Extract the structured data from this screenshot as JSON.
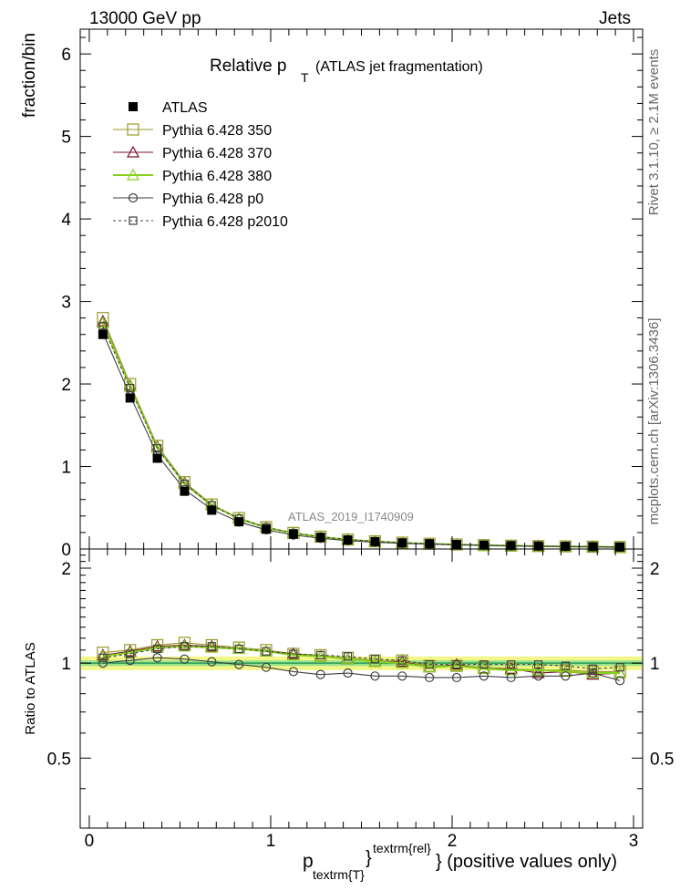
{
  "header": {
    "left": "13000 GeV pp",
    "right": "Jets"
  },
  "side_labels": {
    "rivet": "Rivet 3.1.10, ≥ 2.1M events",
    "mcplots": "mcplots.cern.ch [arXiv:1306.3436]"
  },
  "chart_data": {
    "type": "line",
    "title_main": "Relative p",
    "title_sub": "T",
    "title_rest": "(ATLAS jet fragmentation)",
    "analysis_id": "ATLAS_2019_I1740909",
    "ylabel": "fraction/bin",
    "ratio_ylabel": "Ratio to ATLAS",
    "xlabel_main": "p",
    "xlabel_sub": "textrm{T}",
    "xlabel_sup": "textrm{rel}",
    "xlabel_rest": "} (positive values only)",
    "xlim": [
      -0.05,
      3.05
    ],
    "ylim": [
      0,
      6.3
    ],
    "ratio_ylim": [
      0.3,
      2.3
    ],
    "x_ticks": [
      "0",
      "1",
      "2",
      "3"
    ],
    "y_ticks": [
      "0",
      "1",
      "2",
      "3",
      "4",
      "5",
      "6"
    ],
    "ratio_ticks": [
      "0.5",
      "1",
      "2"
    ],
    "x": [
      0.075,
      0.225,
      0.375,
      0.525,
      0.675,
      0.825,
      0.975,
      1.125,
      1.275,
      1.425,
      1.575,
      1.725,
      1.875,
      2.025,
      2.175,
      2.325,
      2.475,
      2.625,
      2.775,
      2.925
    ],
    "data": {
      "name": "ATLAS",
      "values": [
        2.6,
        1.83,
        1.1,
        0.7,
        0.47,
        0.33,
        0.24,
        0.18,
        0.14,
        0.11,
        0.09,
        0.075,
        0.065,
        0.055,
        0.048,
        0.042,
        0.037,
        0.033,
        0.029,
        0.025
      ],
      "band_inner": 0.02,
      "band_outer": 0.05
    },
    "series": [
      {
        "name": "Pythia 6.428 350",
        "color": "#9a9a2a",
        "marker": "open-square",
        "dash": "",
        "values": [
          2.8,
          2.0,
          1.25,
          0.81,
          0.54,
          0.375,
          0.265,
          0.195,
          0.15,
          0.115,
          0.093,
          0.077,
          0.064,
          0.055,
          0.047,
          0.041,
          0.036,
          0.032,
          0.028,
          0.024
        ],
        "ratio": [
          1.08,
          1.1,
          1.14,
          1.16,
          1.14,
          1.12,
          1.1,
          1.07,
          1.06,
          1.04,
          1.02,
          1.02,
          0.98,
          0.98,
          0.97,
          0.96,
          0.95,
          0.95,
          0.94,
          0.94
        ]
      },
      {
        "name": "Pythia 6.428 370",
        "color": "#7a1028",
        "marker": "open-triangle",
        "dash": "",
        "values": [
          2.76,
          1.98,
          1.24,
          0.8,
          0.535,
          0.37,
          0.262,
          0.193,
          0.148,
          0.114,
          0.092,
          0.076,
          0.063,
          0.054,
          0.046,
          0.04,
          0.035,
          0.031,
          0.027,
          0.023
        ],
        "ratio": [
          1.06,
          1.09,
          1.13,
          1.14,
          1.13,
          1.11,
          1.09,
          1.07,
          1.05,
          1.03,
          1.01,
          1.01,
          0.97,
          0.99,
          0.96,
          0.96,
          0.93,
          0.94,
          0.92,
          0.93
        ]
      },
      {
        "name": "Pythia 6.428 380",
        "color": "#88d020",
        "marker": "open-triangle",
        "dash": "",
        "values": [
          2.74,
          1.97,
          1.23,
          0.79,
          0.53,
          0.368,
          0.26,
          0.192,
          0.147,
          0.113,
          0.091,
          0.075,
          0.063,
          0.054,
          0.046,
          0.04,
          0.035,
          0.031,
          0.027,
          0.023
        ],
        "ratio": [
          1.05,
          1.08,
          1.12,
          1.13,
          1.12,
          1.11,
          1.09,
          1.06,
          1.05,
          1.03,
          1.01,
          1.0,
          0.97,
          0.98,
          0.96,
          0.95,
          0.95,
          0.94,
          0.93,
          0.93
        ]
      },
      {
        "name": "Pythia 6.428 p0",
        "color": "#404040",
        "marker": "open-circle",
        "dash": "",
        "values": [
          2.62,
          1.86,
          1.14,
          0.72,
          0.48,
          0.328,
          0.233,
          0.17,
          0.13,
          0.102,
          0.082,
          0.068,
          0.058,
          0.05,
          0.044,
          0.038,
          0.034,
          0.03,
          0.027,
          0.022
        ],
        "ratio": [
          1.0,
          1.02,
          1.04,
          1.03,
          1.01,
          0.99,
          0.97,
          0.94,
          0.92,
          0.93,
          0.91,
          0.91,
          0.9,
          0.9,
          0.91,
          0.9,
          0.91,
          0.91,
          0.93,
          0.88
        ]
      },
      {
        "name": "Pythia 6.428 p2010",
        "color": "#404040",
        "marker": "open-square-small",
        "dash": "3,3",
        "values": [
          2.7,
          1.95,
          1.22,
          0.79,
          0.53,
          0.368,
          0.262,
          0.194,
          0.149,
          0.115,
          0.093,
          0.077,
          0.064,
          0.055,
          0.047,
          0.041,
          0.036,
          0.032,
          0.028,
          0.024
        ],
        "ratio": [
          1.04,
          1.07,
          1.11,
          1.13,
          1.13,
          1.11,
          1.09,
          1.07,
          1.06,
          1.05,
          1.03,
          1.02,
          0.99,
          0.99,
          0.99,
          0.99,
          0.99,
          0.98,
          0.96,
          0.97
        ]
      }
    ]
  }
}
